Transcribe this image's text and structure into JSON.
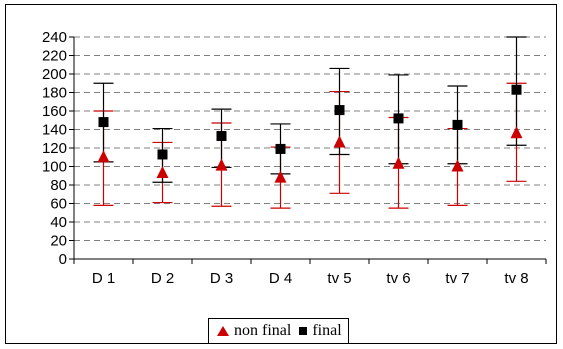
{
  "chart_data": {
    "type": "scatter",
    "categories": [
      "D 1",
      "D 2",
      "D 3",
      "D 4",
      "tv 5",
      "tv 6",
      "tv 7",
      "tv 8"
    ],
    "ylim": [
      0,
      240
    ],
    "yticks": [
      0,
      20,
      40,
      60,
      80,
      100,
      120,
      140,
      160,
      180,
      200,
      220,
      240
    ],
    "grid": "horizontal dashed",
    "legend_position": "bottom",
    "series": [
      {
        "name": "non final",
        "marker": "triangle",
        "color": "#cc0000",
        "values": [
          110,
          93,
          101,
          88,
          126,
          103,
          100,
          136
        ],
        "error_low": [
          58,
          61,
          57,
          55,
          71,
          55,
          58,
          84
        ],
        "error_high": [
          160,
          126,
          147,
          121,
          181,
          153,
          141,
          190
        ]
      },
      {
        "name": "final",
        "marker": "square",
        "color": "#000000",
        "values": [
          148,
          113,
          133,
          119,
          161,
          152,
          145,
          183
        ],
        "error_low": [
          105,
          83,
          99,
          92,
          113,
          103,
          103,
          123
        ],
        "error_high": [
          190,
          141,
          162,
          146,
          206,
          199,
          187,
          240
        ]
      }
    ]
  }
}
